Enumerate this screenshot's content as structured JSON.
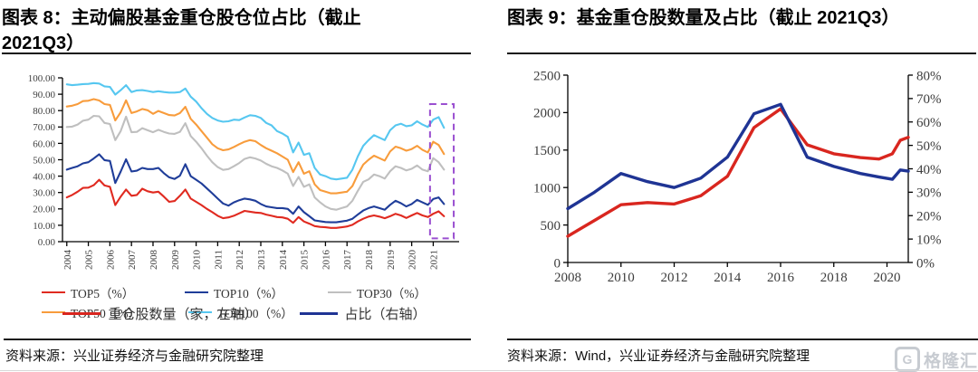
{
  "figure8": {
    "title": "图表 8：主动偏股基金重仓股仓位占比（截止 2021Q3）",
    "source": "资料来源：兴业证券经济与金融研究院整理"
  },
  "figure9": {
    "title": "图表 9：基金重仓股数量及占比（截止 2021Q3）",
    "source": "资料来源：Wind，兴业证券经济与金融研究院整理",
    "logo_g": "G",
    "logo_text": "格隆汇"
  },
  "chart_data": [
    {
      "id": "fig8",
      "type": "line",
      "title": "图表 8：主动偏股基金重仓股仓位占比（截止 2021Q3）",
      "ylim": [
        0,
        100
      ],
      "y_ticks": [
        {
          "v": 0,
          "label": "0.00"
        },
        {
          "v": 10,
          "label": "10.00"
        },
        {
          "v": 20,
          "label": "20.00"
        },
        {
          "v": 30,
          "label": "30.00"
        },
        {
          "v": 40,
          "label": "40.00"
        },
        {
          "v": 50,
          "label": "50.00"
        },
        {
          "v": 60,
          "label": "60.00"
        },
        {
          "v": 70,
          "label": "70.00"
        },
        {
          "v": 80,
          "label": "80.00"
        },
        {
          "v": 90,
          "label": "90.00"
        },
        {
          "v": 100,
          "label": "100.00"
        }
      ],
      "xlim": [
        2003.8,
        2022.2
      ],
      "x_ticks": [
        {
          "v": 2004,
          "label": "2004"
        },
        {
          "v": 2005,
          "label": "2005"
        },
        {
          "v": 2006,
          "label": "2006"
        },
        {
          "v": 2007,
          "label": "2007"
        },
        {
          "v": 2008,
          "label": "2008"
        },
        {
          "v": 2009,
          "label": "2009"
        },
        {
          "v": 2010,
          "label": "2010"
        },
        {
          "v": 2011,
          "label": "2011"
        },
        {
          "v": 2012,
          "label": "2012"
        },
        {
          "v": 2013,
          "label": "2013"
        },
        {
          "v": 2014,
          "label": "2014"
        },
        {
          "v": 2015,
          "label": "2015"
        },
        {
          "v": 2016,
          "label": "2016"
        },
        {
          "v": 2017,
          "label": "2017"
        },
        {
          "v": 2018,
          "label": "2018"
        },
        {
          "v": 2019,
          "label": "2019"
        },
        {
          "v": 2020,
          "label": "2020"
        },
        {
          "v": 2021,
          "label": "2021"
        }
      ],
      "x_start": 2004.0,
      "x_step": 0.25,
      "series": [
        {
          "name": "TOP5（%）",
          "color": "#e02a20",
          "values": [
            27,
            28.5,
            30.5,
            32.8,
            33,
            34.5,
            37.8,
            34.3,
            33.5,
            22.3,
            27.5,
            31.8,
            28,
            28.5,
            32.3,
            30.8,
            30,
            30.5,
            27.5,
            24.3,
            24.8,
            28,
            31.8,
            26.3,
            24.3,
            22.3,
            20,
            18,
            15.8,
            14.3,
            14.8,
            15.8,
            17.3,
            18.8,
            18.3,
            17.8,
            17.5,
            16.5,
            15.8,
            15,
            14.8,
            14,
            11.5,
            15,
            12.3,
            11,
            9.5,
            9,
            8.8,
            8.4,
            8.4,
            8.8,
            9.3,
            10.3,
            12.3,
            14,
            15.3,
            16,
            15.3,
            14.3,
            15.5,
            17,
            16,
            14.5,
            16,
            17.5,
            16,
            15,
            17,
            18.5,
            15.5
          ]
        },
        {
          "name": "TOP10（%）",
          "color": "#1f3d99",
          "values": [
            44,
            45,
            46,
            47.8,
            48.5,
            50.8,
            53.3,
            49.8,
            49.3,
            35.8,
            42.8,
            50.3,
            42.8,
            43.3,
            45,
            44.3,
            44.3,
            45,
            41.8,
            39.3,
            38.3,
            40.3,
            47.3,
            40,
            37.8,
            35.5,
            32.5,
            29.5,
            26.3,
            23.3,
            22,
            24,
            25.3,
            26.3,
            25.8,
            25,
            23,
            21.5,
            21,
            20.5,
            20.5,
            20,
            17,
            21.5,
            18,
            15.5,
            13,
            12.5,
            12,
            11.8,
            11.8,
            12.3,
            12.8,
            14,
            16.5,
            19,
            20.5,
            21.5,
            20.5,
            19.5,
            22.5,
            25,
            23.5,
            21.5,
            23,
            25.5,
            24,
            22.5,
            26,
            27,
            23
          ]
        },
        {
          "name": "TOP30（%）",
          "color": "#bfbfbf",
          "values": [
            70,
            70.2,
            71.5,
            73.8,
            74.5,
            76.8,
            76.5,
            72.5,
            71.8,
            62,
            67.5,
            76.3,
            66.8,
            67,
            69.3,
            68,
            66.8,
            68.3,
            67,
            66,
            65.8,
            67,
            72.3,
            64.5,
            61,
            57,
            52.5,
            48.5,
            45.5,
            43.8,
            44.3,
            46,
            48,
            50.5,
            51.5,
            50.8,
            49.5,
            47.5,
            46,
            45,
            43.5,
            41.5,
            34,
            39.5,
            33.5,
            35,
            27,
            24,
            21.5,
            20,
            19.5,
            20.5,
            21.5,
            25,
            31,
            36.5,
            38,
            41,
            40,
            38.5,
            43,
            46,
            45,
            43.5,
            44.5,
            46.5,
            44,
            43,
            51,
            48.5,
            44
          ]
        },
        {
          "name": "TOP50（%）",
          "color": "#f89c3c",
          "values": [
            82.5,
            83,
            84,
            85.8,
            86,
            87,
            86.2,
            84,
            83.5,
            74,
            79,
            86.3,
            78.5,
            79.5,
            81,
            80.2,
            78,
            79.8,
            78.5,
            77.3,
            77,
            78.5,
            82.3,
            75,
            71.5,
            67.5,
            63.5,
            59.5,
            57,
            55.8,
            56.3,
            57.8,
            59.5,
            61,
            62,
            61.3,
            59,
            57,
            55.5,
            54,
            52,
            50,
            42.5,
            48.5,
            41.5,
            43,
            35,
            31.5,
            30.5,
            29.5,
            29.5,
            30,
            30.5,
            34,
            41,
            47,
            50,
            52.5,
            51,
            49.5,
            55,
            58,
            57,
            55.5,
            56.5,
            58.5,
            56,
            54.5,
            61,
            59,
            53.5
          ]
        },
        {
          "name": "TOP100（%）",
          "color": "#56c7f0",
          "values": [
            96,
            95.5,
            95.8,
            96.2,
            96.3,
            96.8,
            96.5,
            94.8,
            94.5,
            89.8,
            92.5,
            95.5,
            91.3,
            92.3,
            92.5,
            92,
            91.3,
            91.8,
            91.3,
            91,
            91,
            91.3,
            93.5,
            88.5,
            85.5,
            81.5,
            78,
            75.5,
            74,
            73.2,
            73.5,
            74.5,
            74.2,
            75.8,
            77.2,
            76.8,
            75.5,
            72.5,
            71,
            67.5,
            66,
            64,
            54.5,
            60.5,
            53,
            54,
            45,
            41,
            40,
            38.5,
            38,
            38.5,
            39,
            44,
            52,
            58.5,
            62,
            65,
            63.5,
            62,
            68,
            71,
            72,
            70.5,
            71,
            73.5,
            71.5,
            70,
            74.5,
            76,
            69.5
          ]
        }
      ],
      "highlight_box": {
        "x0": 2020.85,
        "x1": 2021.95,
        "y0": 2,
        "y1": 84,
        "color": "#9a4fd0"
      }
    },
    {
      "id": "fig9",
      "type": "line",
      "title": "图表 9：基金重仓股数量及占比（截止 2021Q3）",
      "ylim": [
        0,
        2500
      ],
      "y_ticks": [
        {
          "v": 0,
          "label": "0"
        },
        {
          "v": 500,
          "label": "500"
        },
        {
          "v": 1000,
          "label": "1000"
        },
        {
          "v": 1500,
          "label": "1500"
        },
        {
          "v": 2000,
          "label": "2000"
        },
        {
          "v": 2500,
          "label": "2500"
        }
      ],
      "y2lim": [
        0,
        80
      ],
      "y2_ticks": [
        {
          "v": 0,
          "label": "0%"
        },
        {
          "v": 10,
          "label": "10%"
        },
        {
          "v": 20,
          "label": "20%"
        },
        {
          "v": 30,
          "label": "30%"
        },
        {
          "v": 40,
          "label": "40%"
        },
        {
          "v": 50,
          "label": "50%"
        },
        {
          "v": 60,
          "label": "60%"
        },
        {
          "v": 70,
          "label": "70%"
        },
        {
          "v": 80,
          "label": "80%"
        }
      ],
      "xlim": [
        2008,
        2020.8
      ],
      "x_ticks": [
        {
          "v": 2008,
          "label": "2008"
        },
        {
          "v": 2010,
          "label": "2010"
        },
        {
          "v": 2012,
          "label": "2012"
        },
        {
          "v": 2014,
          "label": "2014"
        },
        {
          "v": 2016,
          "label": "2016"
        },
        {
          "v": 2018,
          "label": "2018"
        },
        {
          "v": 2020,
          "label": "2020"
        }
      ],
      "series": [
        {
          "name": "重仓股数量（家，左轴）",
          "color": "#d9261f",
          "axis": "y",
          "x": [
            2008,
            2009,
            2010,
            2011,
            2012,
            2013,
            2014,
            2015,
            2016,
            2017,
            2018,
            2019,
            2019.7,
            2020.2,
            2020.5,
            2020.8
          ],
          "values": [
            350,
            560,
            770,
            800,
            780,
            890,
            1150,
            1800,
            2050,
            1570,
            1450,
            1400,
            1380,
            1450,
            1630,
            1670
          ]
        },
        {
          "name": "占比（右轴）",
          "color": "#1f3494",
          "axis": "y2",
          "x": [
            2008,
            2009,
            2010,
            2011,
            2012,
            2013,
            2014,
            2015,
            2016,
            2017,
            2018,
            2019,
            2019.7,
            2020.2,
            2020.5,
            2020.8
          ],
          "values": [
            23,
            30,
            38,
            34.5,
            32,
            36,
            45,
            63.5,
            67.5,
            45,
            41,
            38,
            36.5,
            35.5,
            39.5,
            39
          ]
        }
      ]
    }
  ]
}
